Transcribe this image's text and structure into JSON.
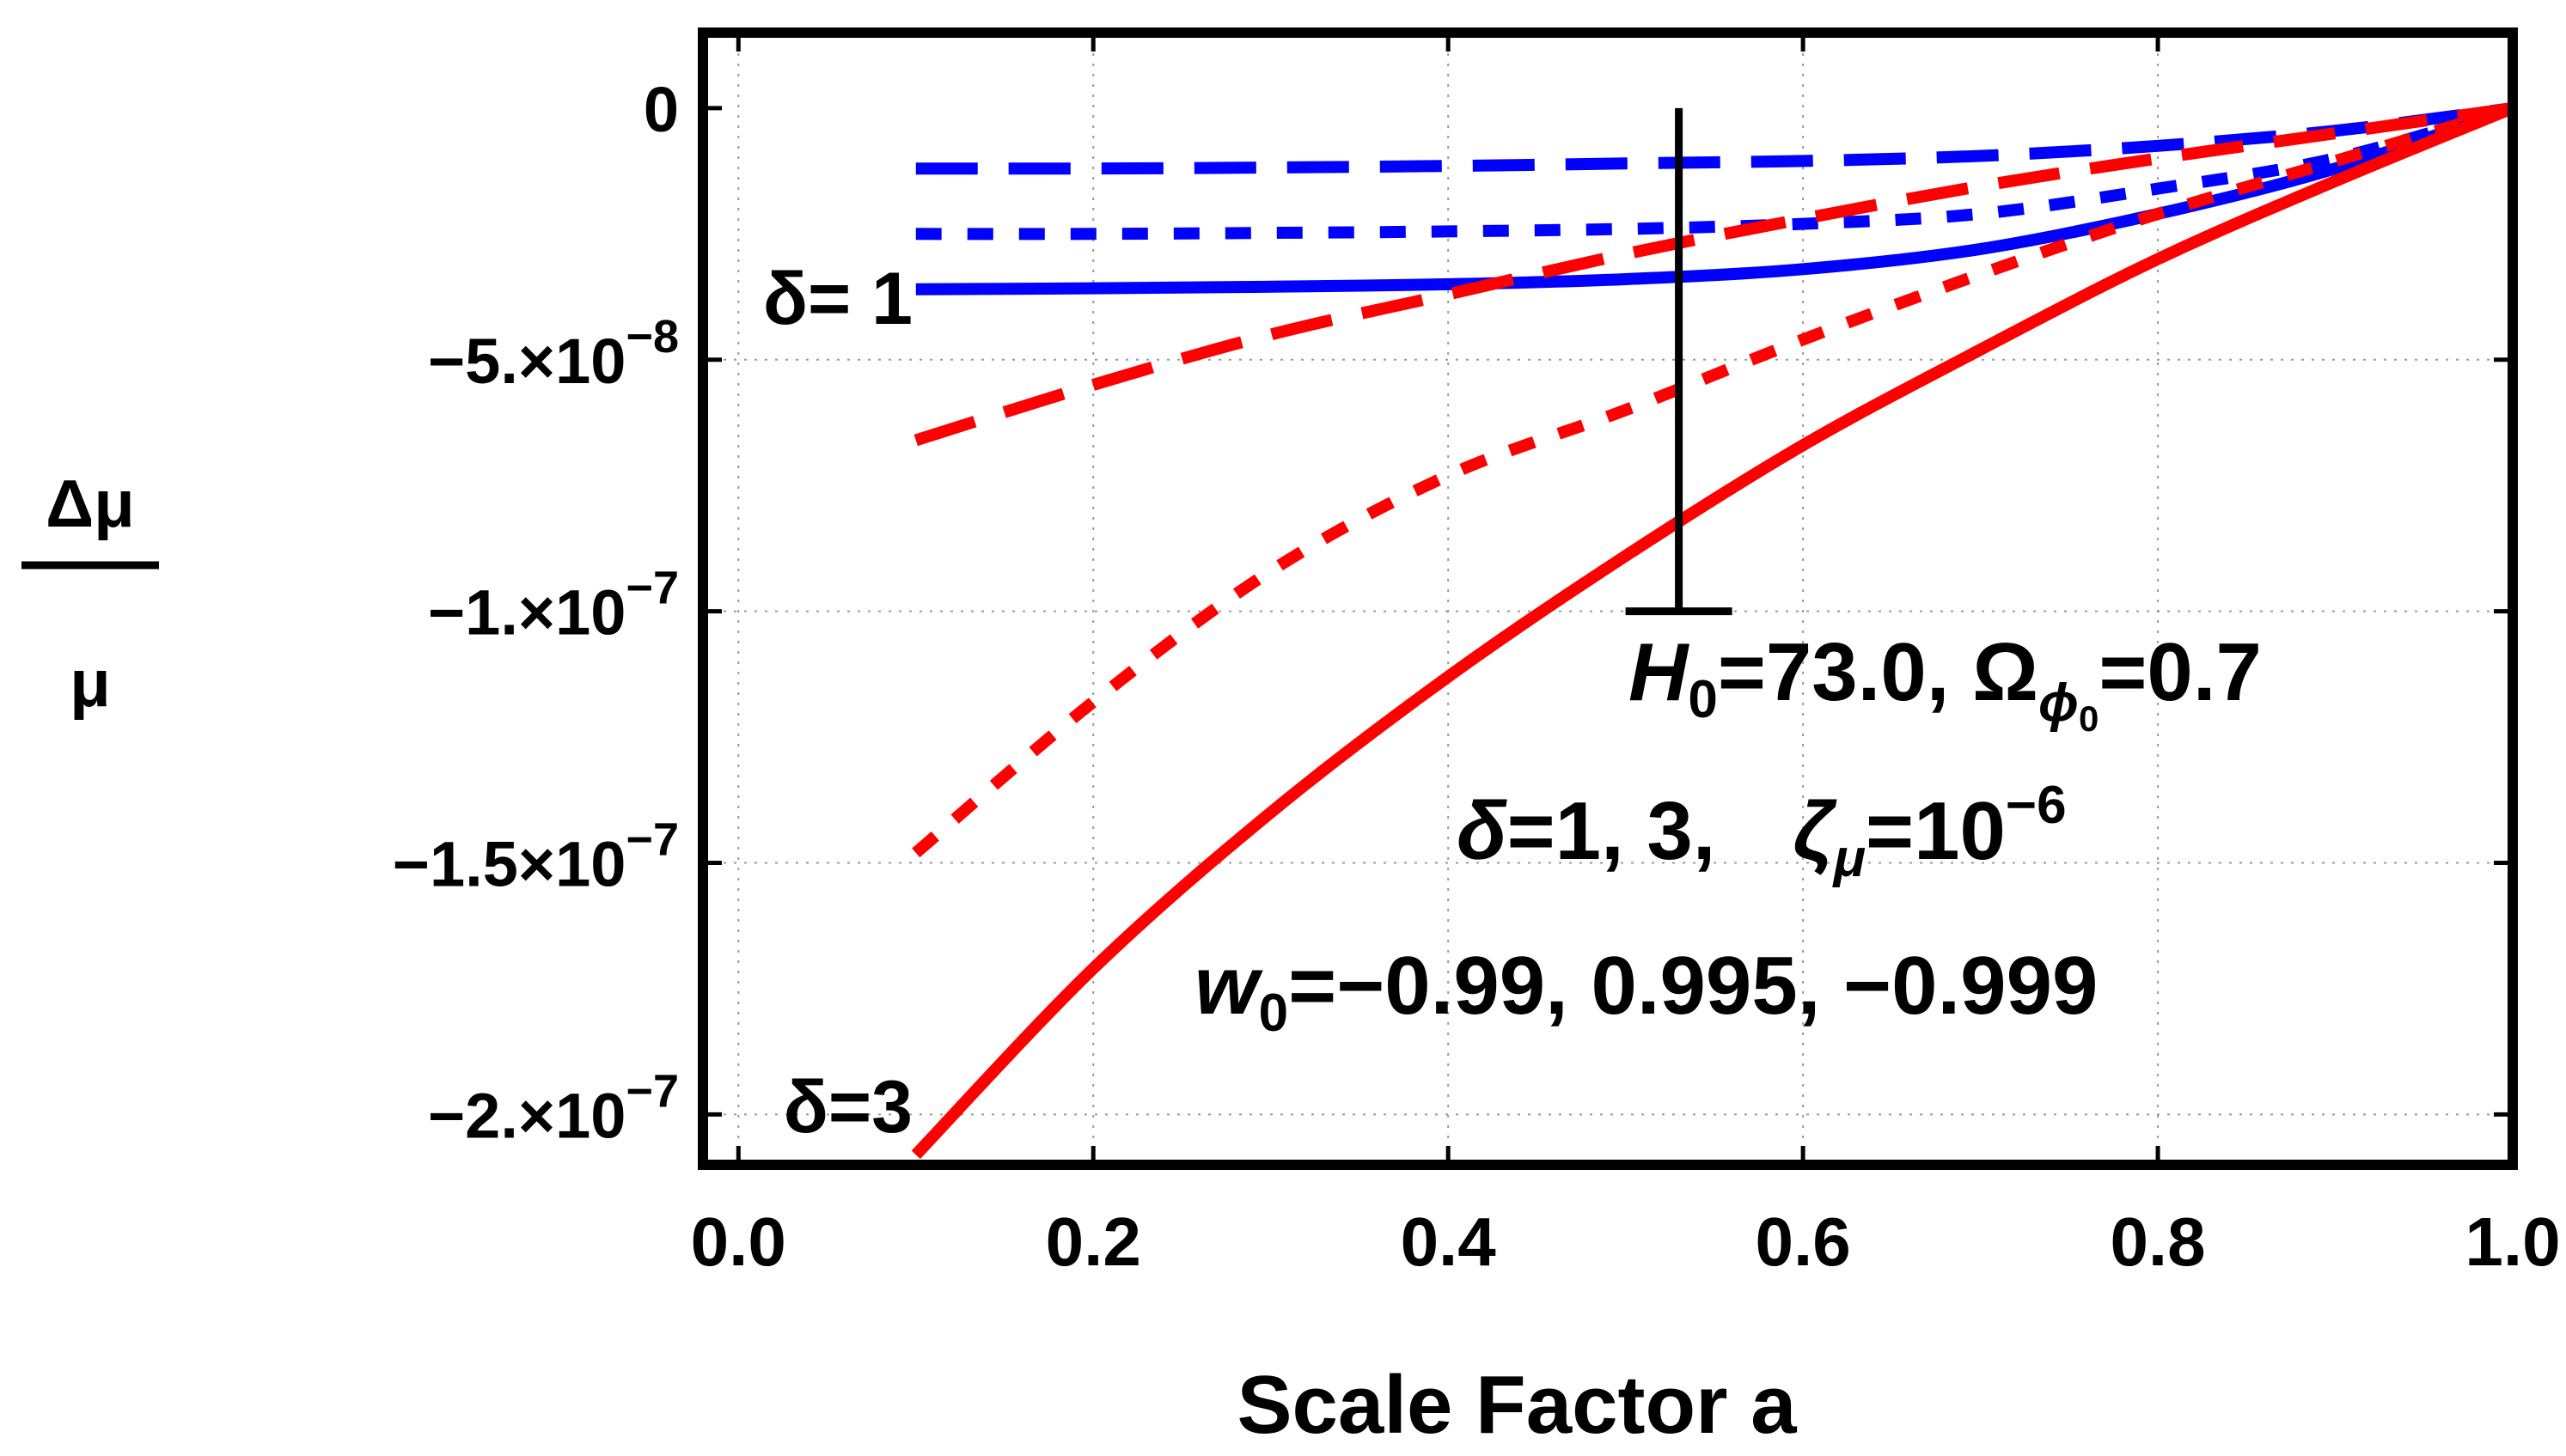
{
  "chart_data": {
    "type": "line",
    "xlabel": "Scale Factor a",
    "ylabel": {
      "numerator": "Δμ",
      "denominator": "μ"
    },
    "xlim": [
      -0.02,
      1.0
    ],
    "ylim": [
      -2.1e-07,
      1.5e-08
    ],
    "x_ticks": [
      {
        "value": 0.0,
        "label": "0.0"
      },
      {
        "value": 0.2,
        "label": "0.2"
      },
      {
        "value": 0.4,
        "label": "0.4"
      },
      {
        "value": 0.6,
        "label": "0.6"
      },
      {
        "value": 0.8,
        "label": "0.8"
      },
      {
        "value": 1.0,
        "label": "1.0"
      }
    ],
    "y_ticks": [
      {
        "value": 0,
        "mantissa": "0",
        "exponent": ""
      },
      {
        "value": -5e-08,
        "mantissa": "−5.×10",
        "exponent": "−8"
      },
      {
        "value": -1e-07,
        "mantissa": "−1.×10",
        "exponent": "−7"
      },
      {
        "value": -1.5e-07,
        "mantissa": "−1.5×10",
        "exponent": "−7"
      },
      {
        "value": -2e-07,
        "mantissa": "−2.×10",
        "exponent": "−7"
      }
    ],
    "grid": true,
    "series": [
      {
        "name": "δ=1, w0=-0.99",
        "color": "#0000ff",
        "dash": "solid",
        "x": [
          0.1,
          0.2,
          0.3,
          0.4,
          0.5,
          0.6,
          0.7,
          0.8,
          0.9,
          1.0
        ],
        "y": [
          -3.6e-08,
          -3.58e-08,
          -3.55e-08,
          -3.5e-08,
          -3.4e-08,
          -3.2e-08,
          -2.8e-08,
          -2.1e-08,
          -1.2e-08,
          0
        ]
      },
      {
        "name": "δ=1, w0=0.995",
        "color": "#0000ff",
        "dash": "dotted",
        "x": [
          0.1,
          0.2,
          0.3,
          0.4,
          0.5,
          0.6,
          0.7,
          0.8,
          0.9,
          1.0
        ],
        "y": [
          -2.5e-08,
          -2.5e-08,
          -2.48e-08,
          -2.45e-08,
          -2.4e-08,
          -2.3e-08,
          -2.1e-08,
          -1.6e-08,
          -1e-08,
          0
        ]
      },
      {
        "name": "δ=1, w0=-0.999",
        "color": "#0000ff",
        "dash": "dashed",
        "x": [
          0.1,
          0.2,
          0.3,
          0.4,
          0.5,
          0.6,
          0.7,
          0.8,
          0.9,
          1.0
        ],
        "y": [
          -1.2e-08,
          -1.2e-08,
          -1.18e-08,
          -1.15e-08,
          -1.1e-08,
          -1.05e-08,
          -9.5e-09,
          -7.5e-09,
          -4.5e-09,
          0
        ]
      },
      {
        "name": "δ=3, w0=-0.99",
        "color": "#ff0000",
        "dash": "solid",
        "x": [
          0.1,
          0.2,
          0.3,
          0.4,
          0.5,
          0.6,
          0.7,
          0.8,
          0.9,
          1.0
        ],
        "y": [
          -2.08e-07,
          -1.71e-07,
          -1.4e-07,
          -1.13e-07,
          -8.9e-08,
          -6.7e-08,
          -4.8e-08,
          -3e-08,
          -1.45e-08,
          0
        ]
      },
      {
        "name": "δ=3, w0=0.995",
        "color": "#ff0000",
        "dash": "dotted",
        "x": [
          0.1,
          0.2,
          0.3,
          0.4,
          0.5,
          0.6,
          0.7,
          0.8,
          0.9,
          1.0
        ],
        "y": [
          -1.48e-07,
          -1.18e-07,
          -9.2e-08,
          -7.3e-08,
          -6e-08,
          -4.6e-08,
          -3.3e-08,
          -2.1e-08,
          -1.05e-08,
          0
        ]
      },
      {
        "name": "δ=3, w0=-0.999",
        "color": "#ff0000",
        "dash": "dashed",
        "x": [
          0.1,
          0.2,
          0.3,
          0.4,
          0.5,
          0.6,
          0.7,
          0.8,
          0.9,
          1.0
        ],
        "y": [
          -6.6e-08,
          -5.5e-08,
          -4.5e-08,
          -3.7e-08,
          -2.9e-08,
          -2.2e-08,
          -1.55e-08,
          -1e-08,
          -5e-09,
          0
        ]
      }
    ],
    "error_bar": {
      "x": 0.53,
      "y_top": 0,
      "y_bottom": -1e-07,
      "color": "#000000"
    },
    "curve_labels": [
      {
        "text": "δ= 1",
        "color": "#0000ff"
      },
      {
        "text": "δ=3",
        "color": "#ff0000"
      }
    ],
    "annotations": {
      "line1": {
        "H": "H",
        "H_sub": "0",
        "H_val": "=73.0, ",
        "Omega": "Ω",
        "Omega_sub": "ϕ",
        "Omega_subsub": "0",
        "Omega_val": "=0.7"
      },
      "line2": {
        "delta": "δ",
        "delta_val": "=1, 3,",
        "zeta": "ζ",
        "zeta_sub": "μ",
        "zeta_val": "=10",
        "zeta_exp": "−6"
      },
      "line3": {
        "w": "w",
        "w_sub": "0",
        "w_val": "=−0.99, 0.995, −0.999"
      }
    }
  }
}
